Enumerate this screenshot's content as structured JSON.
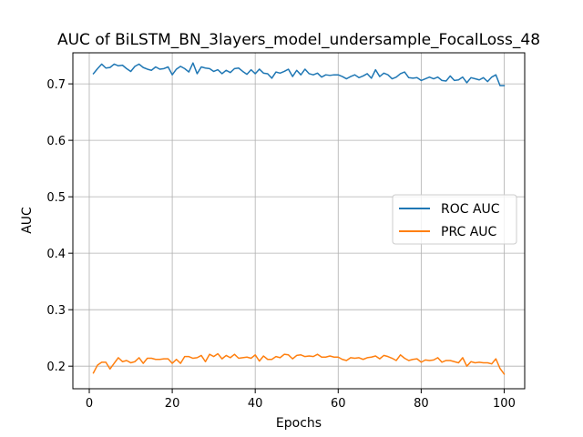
{
  "chart_data": {
    "type": "line",
    "title": "AUC of BiLSTM_BN_3layers_model_undersample_FocalLoss_48",
    "xlabel": "Epochs",
    "ylabel": "AUC",
    "xlim": [
      -3.95,
      104.95
    ],
    "ylim": [
      0.16,
      0.755
    ],
    "xticks": [
      0,
      20,
      40,
      60,
      80,
      100
    ],
    "yticks": [
      0.2,
      0.3,
      0.4,
      0.5,
      0.6,
      0.7
    ],
    "ytick_labels": [
      "0.2",
      "0.3",
      "0.4",
      "0.5",
      "0.6",
      "0.7"
    ],
    "grid": true,
    "legend_position": "center-right",
    "x": [
      1,
      2,
      3,
      4,
      5,
      6,
      7,
      8,
      9,
      10,
      11,
      12,
      13,
      14,
      15,
      16,
      17,
      18,
      19,
      20,
      21,
      22,
      23,
      24,
      25,
      26,
      27,
      28,
      29,
      30,
      31,
      32,
      33,
      34,
      35,
      36,
      37,
      38,
      39,
      40,
      41,
      42,
      43,
      44,
      45,
      46,
      47,
      48,
      49,
      50,
      51,
      52,
      53,
      54,
      55,
      56,
      57,
      58,
      59,
      60,
      61,
      62,
      63,
      64,
      65,
      66,
      67,
      68,
      69,
      70,
      71,
      72,
      73,
      74,
      75,
      76,
      77,
      78,
      79,
      80,
      81,
      82,
      83,
      84,
      85,
      86,
      87,
      88,
      89,
      90,
      91,
      92,
      93,
      94,
      95,
      96,
      97,
      98,
      99,
      100
    ],
    "series": [
      {
        "name": "ROC AUC",
        "color": "#1f77b4",
        "values": [
          0.718,
          0.727,
          0.735,
          0.728,
          0.729,
          0.735,
          0.732,
          0.733,
          0.727,
          0.722,
          0.731,
          0.735,
          0.729,
          0.726,
          0.724,
          0.73,
          0.726,
          0.727,
          0.73,
          0.716,
          0.726,
          0.731,
          0.727,
          0.721,
          0.737,
          0.718,
          0.73,
          0.728,
          0.727,
          0.722,
          0.725,
          0.718,
          0.724,
          0.72,
          0.727,
          0.728,
          0.722,
          0.717,
          0.725,
          0.718,
          0.726,
          0.719,
          0.718,
          0.71,
          0.721,
          0.719,
          0.722,
          0.726,
          0.713,
          0.724,
          0.716,
          0.726,
          0.718,
          0.716,
          0.719,
          0.712,
          0.716,
          0.715,
          0.716,
          0.716,
          0.713,
          0.709,
          0.713,
          0.716,
          0.711,
          0.714,
          0.718,
          0.71,
          0.725,
          0.713,
          0.719,
          0.716,
          0.709,
          0.712,
          0.718,
          0.721,
          0.711,
          0.71,
          0.711,
          0.706,
          0.709,
          0.712,
          0.709,
          0.712,
          0.706,
          0.705,
          0.714,
          0.706,
          0.707,
          0.712,
          0.702,
          0.711,
          0.709,
          0.707,
          0.711,
          0.704,
          0.712,
          0.716,
          0.697,
          0.697
        ]
      },
      {
        "name": "PRC AUC",
        "color": "#ff7f0e",
        "values": [
          0.188,
          0.202,
          0.207,
          0.207,
          0.195,
          0.205,
          0.215,
          0.208,
          0.21,
          0.206,
          0.208,
          0.215,
          0.205,
          0.214,
          0.214,
          0.212,
          0.212,
          0.213,
          0.213,
          0.205,
          0.212,
          0.205,
          0.217,
          0.217,
          0.214,
          0.215,
          0.219,
          0.208,
          0.221,
          0.217,
          0.222,
          0.213,
          0.219,
          0.215,
          0.221,
          0.214,
          0.215,
          0.216,
          0.214,
          0.22,
          0.209,
          0.218,
          0.212,
          0.212,
          0.217,
          0.215,
          0.221,
          0.22,
          0.213,
          0.219,
          0.22,
          0.217,
          0.218,
          0.217,
          0.221,
          0.216,
          0.216,
          0.218,
          0.216,
          0.216,
          0.212,
          0.21,
          0.215,
          0.214,
          0.215,
          0.212,
          0.215,
          0.216,
          0.218,
          0.213,
          0.219,
          0.217,
          0.214,
          0.21,
          0.22,
          0.214,
          0.21,
          0.212,
          0.213,
          0.207,
          0.211,
          0.21,
          0.211,
          0.215,
          0.207,
          0.21,
          0.21,
          0.208,
          0.206,
          0.215,
          0.2,
          0.208,
          0.206,
          0.207,
          0.206,
          0.206,
          0.204,
          0.213,
          0.196,
          0.186
        ]
      }
    ]
  }
}
